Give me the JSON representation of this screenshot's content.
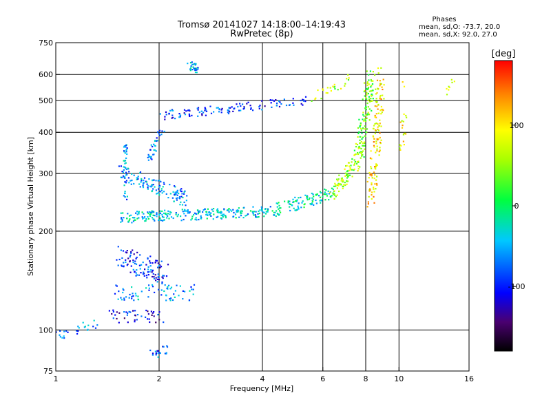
{
  "chart_data": {
    "type": "scatter",
    "title": "Tromsø 20141027 14:18:00–14:19:43",
    "subtitle": "RwPretec (8p)",
    "stats": {
      "heading": "Phases",
      "line_o": "mean, sd,O: -73.7, 20.0",
      "line_x": "mean, sd,X:  92.0, 27.0"
    },
    "xlabel": "Frequency [MHz]",
    "ylabel": "Stationary phase Virtual Height [km]",
    "xscale": "log",
    "yscale": "log",
    "xlim": [
      1,
      16
    ],
    "ylim": [
      75,
      750
    ],
    "xticks": [
      1,
      2,
      4,
      6,
      8,
      10,
      16
    ],
    "yticks": [
      75,
      100,
      200,
      300,
      400,
      500,
      600,
      750
    ],
    "grid_x": [
      2,
      4,
      6,
      8,
      10
    ],
    "grid_y": [
      100,
      200,
      300,
      400,
      500,
      600
    ],
    "colorbar": {
      "label": "[deg]",
      "min": -180,
      "max": 180,
      "ticks": [
        100,
        0,
        -100
      ],
      "colormap": "rainbow"
    },
    "point_color_hint": "phase in degrees",
    "traces": [
      {
        "from": [
          1.55,
          220
        ],
        "to": [
          4.2,
          230
        ],
        "phase": -40,
        "n": 260,
        "spread": 0.035
      },
      {
        "from": [
          4.2,
          230
        ],
        "to": [
          6.4,
          260
        ],
        "phase": -20,
        "n": 110,
        "spread": 0.04
      },
      {
        "from": [
          6.4,
          260
        ],
        "to": [
          7.6,
          330
        ],
        "phase": 60,
        "n": 90,
        "spread": 0.05
      },
      {
        "from": [
          7.6,
          330
        ],
        "to": [
          8.3,
          600
        ],
        "phase": 40,
        "n": 140,
        "spread": 0.06
      },
      {
        "from": [
          1.55,
          300
        ],
        "to": [
          2.4,
          250
        ],
        "phase": -60,
        "n": 130,
        "spread": 0.05
      },
      {
        "from": [
          2.0,
          450
        ],
        "to": [
          5.5,
          500
        ],
        "phase": -90,
        "n": 120,
        "spread": 0.03
      },
      {
        "from": [
          5.6,
          510
        ],
        "to": [
          7.2,
          580
        ],
        "phase": 60,
        "n": 25,
        "spread": 0.03
      },
      {
        "from": [
          1.6,
          250
        ],
        "to": [
          1.6,
          370
        ],
        "phase": -60,
        "n": 35,
        "spread": 0.03
      },
      {
        "from": [
          1.85,
          330
        ],
        "to": [
          2.05,
          410
        ],
        "phase": -70,
        "n": 35,
        "spread": 0.03
      },
      {
        "from": [
          1.5,
          130
        ],
        "to": [
          2.6,
          130
        ],
        "phase": -60,
        "n": 70,
        "spread": 0.05
      },
      {
        "from": [
          1.55,
          165
        ],
        "to": [
          2.05,
          150
        ],
        "phase": -90,
        "n": 110,
        "spread": 0.08
      },
      {
        "from": [
          1.45,
          110
        ],
        "to": [
          2.05,
          110
        ],
        "phase": -110,
        "n": 45,
        "spread": 0.04
      },
      {
        "from": [
          1.0,
          96
        ],
        "to": [
          1.35,
          106
        ],
        "phase": -70,
        "n": 25,
        "spread": 0.03
      },
      {
        "from": [
          2.45,
          640
        ],
        "to": [
          2.6,
          620
        ],
        "phase": -55,
        "n": 25,
        "spread": 0.03
      },
      {
        "from": [
          1.9,
          84
        ],
        "to": [
          2.1,
          88
        ],
        "phase": -80,
        "n": 20,
        "spread": 0.03
      },
      {
        "from": [
          8.3,
          250
        ],
        "to": [
          8.9,
          600
        ],
        "phase": 100,
        "n": 140,
        "spread": 0.06
      },
      {
        "from": [
          10.2,
          350
        ],
        "to": [
          10.4,
          550
        ],
        "phase": 90,
        "n": 20,
        "spread": 0.04
      },
      {
        "from": [
          13.5,
          460
        ],
        "to": [
          14.3,
          590
        ],
        "phase": 70,
        "n": 8,
        "spread": 0.05
      }
    ]
  }
}
